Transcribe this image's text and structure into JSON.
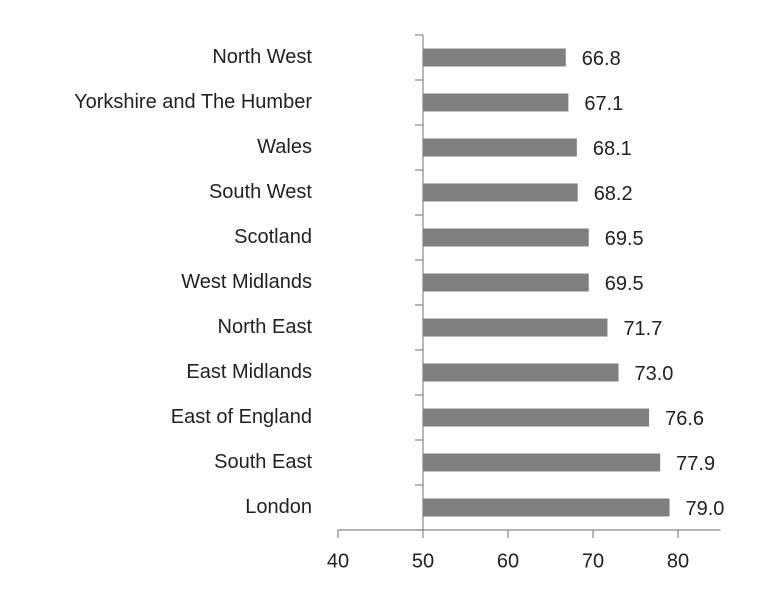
{
  "chart_data": {
    "type": "bar",
    "orientation": "horizontal",
    "categories": [
      "North West",
      "Yorkshire and The Humber",
      "Wales",
      "South West",
      "Scotland",
      "West Midlands",
      "North East",
      "East Midlands",
      "East of England",
      "South East",
      "London"
    ],
    "values": [
      66.8,
      67.1,
      68.1,
      68.2,
      69.5,
      69.5,
      71.7,
      73.0,
      76.6,
      77.9,
      79.0
    ],
    "value_labels": [
      "66.8",
      "67.1",
      "68.1",
      "68.2",
      "69.5",
      "69.5",
      "71.7",
      "73.0",
      "76.6",
      "77.9",
      "79.0"
    ],
    "color": "#808080",
    "xlim": [
      40,
      85
    ],
    "xticks": [
      40,
      50,
      60,
      70,
      80
    ],
    "axis_crossing": 50,
    "grid": false
  }
}
